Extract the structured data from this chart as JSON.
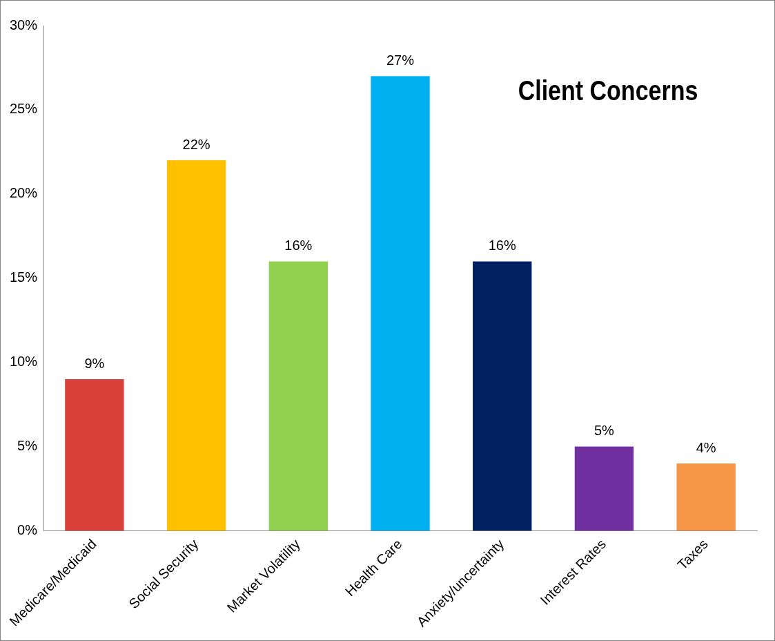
{
  "chart_data": {
    "type": "bar",
    "title": "Client Concerns",
    "categories": [
      "Medicare/Medicaid",
      "Social Security",
      "Market Volatility",
      "Health Care",
      "Anxiety/uncertainty",
      "Interest Rates",
      "Taxes"
    ],
    "values": [
      9,
      22,
      16,
      27,
      16,
      5,
      4
    ],
    "value_labels": [
      "9%",
      "22%",
      "16%",
      "27%",
      "16%",
      "5%",
      "4%"
    ],
    "colors": [
      "#d9403a",
      "#ffc000",
      "#92d050",
      "#00b0f0",
      "#002060",
      "#7030a0",
      "#f79646"
    ],
    "ylim": [
      0,
      30
    ],
    "yticks": [
      {
        "value": 0,
        "label": "0%"
      },
      {
        "value": 5,
        "label": "5%"
      },
      {
        "value": 10,
        "label": "10%"
      },
      {
        "value": 15,
        "label": "15%"
      },
      {
        "value": 20,
        "label": "20%"
      },
      {
        "value": 25,
        "label": "25%"
      },
      {
        "value": 30,
        "label": "30%"
      }
    ],
    "grid": false,
    "legend": false
  }
}
